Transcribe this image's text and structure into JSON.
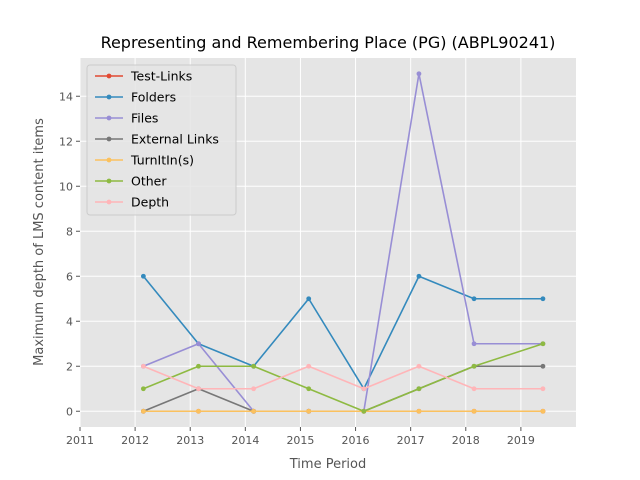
{
  "chart_data": {
    "type": "line",
    "title": "Representing and Remembering Place (PG) (ABPL90241)",
    "xlabel": "Time Period",
    "ylabel": "Maximum depth of LMS content items",
    "xlim": [
      2011,
      2020
    ],
    "ylim": [
      -0.7,
      15.7
    ],
    "xticks": [
      2011,
      2012,
      2013,
      2014,
      2015,
      2016,
      2017,
      2018,
      2019
    ],
    "yticks": [
      0,
      2,
      4,
      6,
      8,
      10,
      12,
      14
    ],
    "grid": true,
    "legend_position": "upper-left",
    "x": [
      2012.15,
      2013.15,
      2014.15,
      2015.15,
      2016.15,
      2017.15,
      2018.15,
      2019.4
    ],
    "series": [
      {
        "name": "Test-Links",
        "color": "#e24a33",
        "values": [
          0,
          0,
          0,
          0,
          0,
          0,
          0,
          0
        ]
      },
      {
        "name": "Folders",
        "color": "#348abd",
        "values": [
          6,
          3,
          2,
          5,
          1,
          6,
          5,
          5
        ]
      },
      {
        "name": "Files",
        "color": "#988ed5",
        "values": [
          2,
          3,
          0,
          0,
          0,
          15,
          3,
          3
        ]
      },
      {
        "name": "External Links",
        "color": "#777777",
        "values": [
          0,
          1,
          0,
          0,
          0,
          1,
          2,
          2
        ]
      },
      {
        "name": "TurnItIn(s)",
        "color": "#fbc15e",
        "values": [
          0,
          0,
          0,
          0,
          0,
          0,
          0,
          0
        ]
      },
      {
        "name": "Other",
        "color": "#8eba42",
        "values": [
          1,
          2,
          2,
          1,
          0,
          1,
          2,
          3
        ]
      },
      {
        "name": "Depth",
        "color": "#ffb5b8",
        "values": [
          2,
          1,
          1,
          2,
          1,
          2,
          1,
          1
        ]
      }
    ]
  }
}
